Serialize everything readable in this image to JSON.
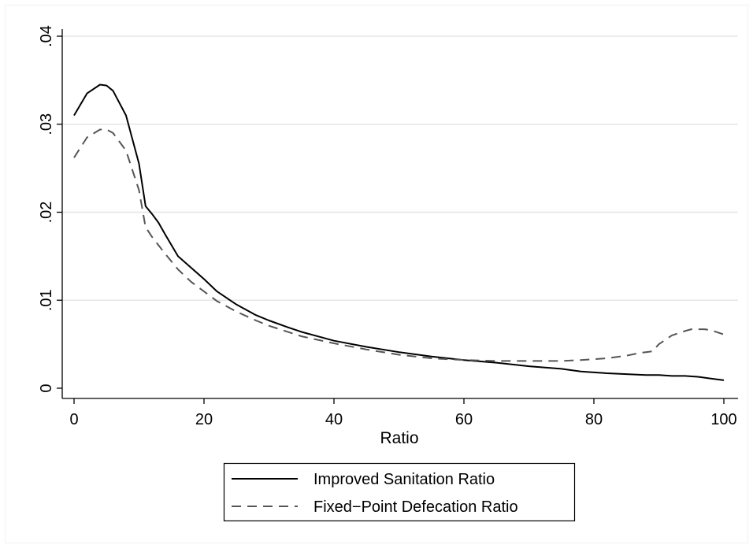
{
  "chart_data": {
    "type": "line",
    "title": "",
    "xlabel": "Ratio",
    "ylabel": "",
    "xlim": [
      0,
      100
    ],
    "ylim": [
      0,
      0.04
    ],
    "x_ticks": [
      0,
      20,
      40,
      60,
      80,
      100
    ],
    "x_tick_labels": [
      "0",
      "20",
      "40",
      "60",
      "80",
      "100"
    ],
    "y_ticks": [
      0,
      0.01,
      0.02,
      0.03,
      0.04
    ],
    "y_tick_labels": [
      "0",
      ".01",
      ".02",
      ".03",
      ".04"
    ],
    "grid": true,
    "legend_position": "bottom",
    "series": [
      {
        "name": "Improved Sanitation Ratio",
        "style": "solid",
        "color": "#000000",
        "x": [
          0,
          2,
          4,
          5,
          6,
          8,
          10,
          11,
          12,
          13,
          14,
          16,
          18,
          20,
          22,
          25,
          28,
          30,
          33,
          35,
          38,
          40,
          45,
          50,
          55,
          60,
          65,
          70,
          75,
          78,
          82,
          85,
          88,
          90,
          92,
          94,
          96,
          98,
          100
        ],
        "y": [
          0.031,
          0.0335,
          0.0345,
          0.0344,
          0.0338,
          0.031,
          0.0255,
          0.0207,
          0.0198,
          0.0188,
          0.0175,
          0.015,
          0.0137,
          0.0124,
          0.011,
          0.0095,
          0.0083,
          0.0077,
          0.0069,
          0.0064,
          0.0058,
          0.0054,
          0.0047,
          0.0041,
          0.0036,
          0.0032,
          0.0029,
          0.0025,
          0.0022,
          0.0019,
          0.0017,
          0.0016,
          0.0015,
          0.0015,
          0.0014,
          0.0014,
          0.0013,
          0.0011,
          0.0009
        ]
      },
      {
        "name": "Fixed−Point Defecation Ratio",
        "style": "dashed",
        "color": "#555555",
        "x": [
          0,
          2,
          4,
          5,
          6,
          8,
          10,
          11,
          12,
          14,
          16,
          18,
          20,
          22,
          25,
          28,
          30,
          35,
          40,
          45,
          50,
          55,
          60,
          65,
          70,
          75,
          78,
          82,
          85,
          87,
          88,
          89,
          90,
          92,
          94,
          95,
          96,
          97,
          98,
          100
        ],
        "y": [
          0.0262,
          0.0285,
          0.0294,
          0.0294,
          0.029,
          0.027,
          0.0225,
          0.0183,
          0.0172,
          0.0153,
          0.0135,
          0.0121,
          0.011,
          0.0099,
          0.0087,
          0.0077,
          0.0071,
          0.0059,
          0.0051,
          0.0044,
          0.0038,
          0.0034,
          0.0032,
          0.0031,
          0.0031,
          0.0031,
          0.0032,
          0.0034,
          0.0037,
          0.004,
          0.0041,
          0.0042,
          0.005,
          0.006,
          0.0065,
          0.0067,
          0.0067,
          0.0067,
          0.0066,
          0.0061
        ]
      }
    ]
  }
}
